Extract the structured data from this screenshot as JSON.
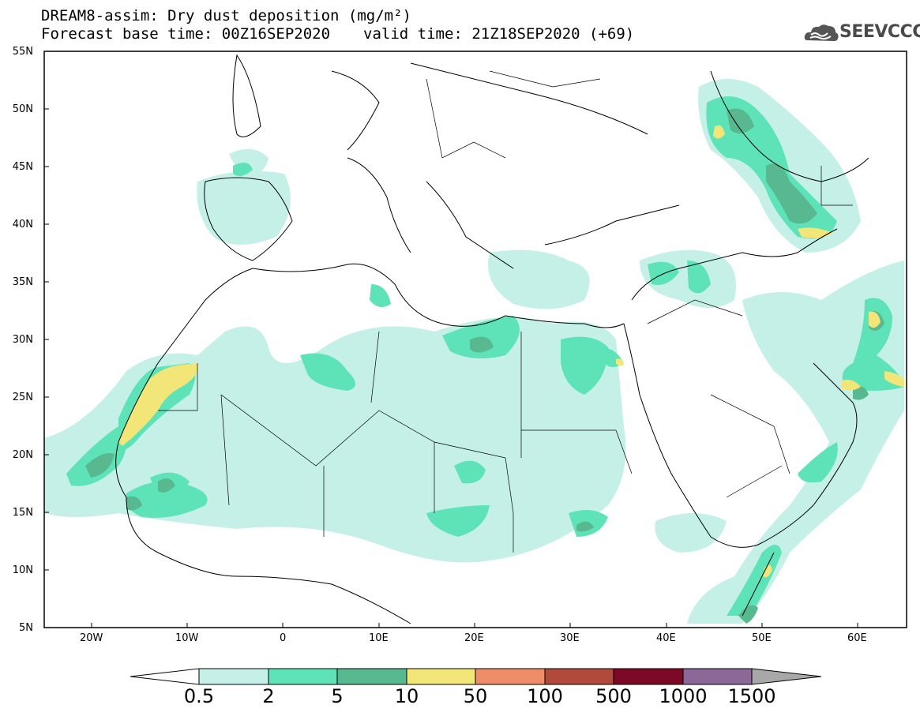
{
  "title": {
    "line1": "DREAM8-assim: Dry dust deposition (mg/m²)",
    "base_time": "Forecast base time: 00Z16SEP2020",
    "valid_time": "valid time: 21Z18SEP2020 (+69)"
  },
  "logo": {
    "text": "SEEVCCC",
    "icon": "cloud-logo-icon"
  },
  "map": {
    "lat_labels": [
      "55N",
      "50N",
      "45N",
      "40N",
      "35N",
      "30N",
      "25N",
      "20N",
      "15N",
      "10N",
      "5N"
    ],
    "lon_labels": [
      "20W",
      "10W",
      "0",
      "10E",
      "20E",
      "30E",
      "40E",
      "50E",
      "60E"
    ],
    "lat_range": [
      5,
      55
    ],
    "lon_range": [
      -25,
      65
    ]
  },
  "colorbar": {
    "levels": [
      "0.5",
      "2",
      "5",
      "10",
      "50",
      "100",
      "500",
      "1000",
      "1500"
    ],
    "colors": [
      "#c5f0e8",
      "#5ee3b8",
      "#58b890",
      "#f2e679",
      "#ee8d67",
      "#b24a3c",
      "#7c0a26",
      "#8c6898",
      "#a8a8a8"
    ]
  }
}
